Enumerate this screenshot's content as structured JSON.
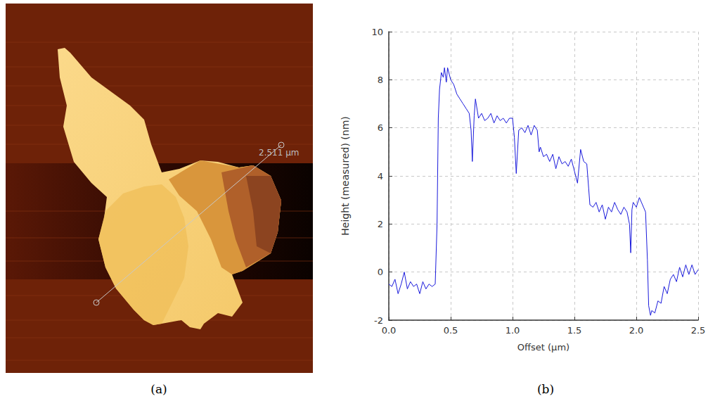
{
  "image_panel": {
    "caption": "(a)",
    "annotation": "2.511 µm"
  },
  "chart_data": {
    "type": "line",
    "caption": "(b)",
    "x_label": "Offset (µm)",
    "y_label": "Height (measured) (nm)",
    "x": [
      0,
      0.025,
      0.05,
      0.075,
      0.1,
      0.125,
      0.15,
      0.175,
      0.2,
      0.225,
      0.25,
      0.275,
      0.3,
      0.325,
      0.35,
      0.375,
      0.39,
      0.4,
      0.41,
      0.425,
      0.44,
      0.45,
      0.465,
      0.475,
      0.5,
      0.525,
      0.55,
      0.575,
      0.6,
      0.625,
      0.65,
      0.665,
      0.675,
      0.69,
      0.7,
      0.725,
      0.75,
      0.775,
      0.8,
      0.825,
      0.85,
      0.875,
      0.9,
      0.925,
      0.95,
      0.975,
      1.0,
      1.015,
      1.03,
      1.05,
      1.075,
      1.1,
      1.125,
      1.15,
      1.175,
      1.2,
      1.215,
      1.225,
      1.25,
      1.275,
      1.3,
      1.325,
      1.35,
      1.375,
      1.4,
      1.425,
      1.45,
      1.475,
      1.5,
      1.525,
      1.55,
      1.575,
      1.6,
      1.615,
      1.625,
      1.65,
      1.675,
      1.7,
      1.725,
      1.75,
      1.775,
      1.8,
      1.825,
      1.85,
      1.875,
      1.9,
      1.925,
      1.945,
      1.955,
      1.965,
      1.975,
      2.0,
      2.025,
      2.05,
      2.075,
      2.09,
      2.1,
      2.115,
      2.125,
      2.15,
      2.175,
      2.2,
      2.225,
      2.25,
      2.275,
      2.3,
      2.325,
      2.35,
      2.375,
      2.4,
      2.425,
      2.45,
      2.475,
      2.5
    ],
    "values": [
      -0.5,
      -0.6,
      -0.3,
      -0.9,
      -0.5,
      0.0,
      -0.7,
      -0.4,
      -0.6,
      -0.5,
      -0.9,
      -0.4,
      -0.7,
      -0.5,
      -0.6,
      -0.5,
      2.0,
      6.4,
      7.6,
      8.3,
      8.1,
      8.5,
      7.9,
      8.5,
      8.0,
      7.8,
      7.4,
      7.2,
      7.0,
      6.8,
      6.6,
      5.9,
      4.6,
      6.5,
      7.2,
      6.4,
      6.6,
      6.3,
      6.4,
      6.6,
      6.2,
      6.5,
      6.3,
      6.4,
      6.2,
      6.4,
      6.4,
      5.6,
      4.1,
      5.9,
      6.0,
      5.8,
      6.1,
      5.7,
      6.1,
      5.9,
      5.0,
      5.2,
      4.8,
      4.9,
      4.6,
      4.9,
      4.3,
      4.8,
      4.5,
      4.6,
      4.4,
      4.7,
      4.2,
      3.7,
      5.1,
      4.6,
      4.5,
      3.5,
      2.8,
      2.7,
      2.9,
      2.5,
      2.8,
      2.2,
      2.7,
      2.5,
      2.9,
      2.6,
      2.4,
      2.7,
      2.5,
      2.0,
      0.8,
      2.6,
      2.9,
      2.7,
      3.1,
      2.8,
      2.5,
      0.5,
      -1.4,
      -1.8,
      -1.6,
      -1.7,
      -1.2,
      -1.3,
      -0.6,
      -0.9,
      -0.3,
      -0.1,
      -0.4,
      0.2,
      -0.2,
      0.3,
      -0.1,
      0.3,
      -0.1,
      0.1
    ],
    "color": "#1a1adb",
    "xlim": [
      0,
      2.5
    ],
    "xticks": [
      {
        "value": 0,
        "label": "0.0"
      },
      0.5,
      {
        "value": 1,
        "label": "1.0"
      },
      1.5,
      {
        "value": 2,
        "label": "2.0"
      },
      2.5
    ],
    "ylim": [
      -2,
      10
    ],
    "yticks": [
      -2,
      0,
      2,
      4,
      6,
      8,
      10
    ],
    "grid": true
  }
}
